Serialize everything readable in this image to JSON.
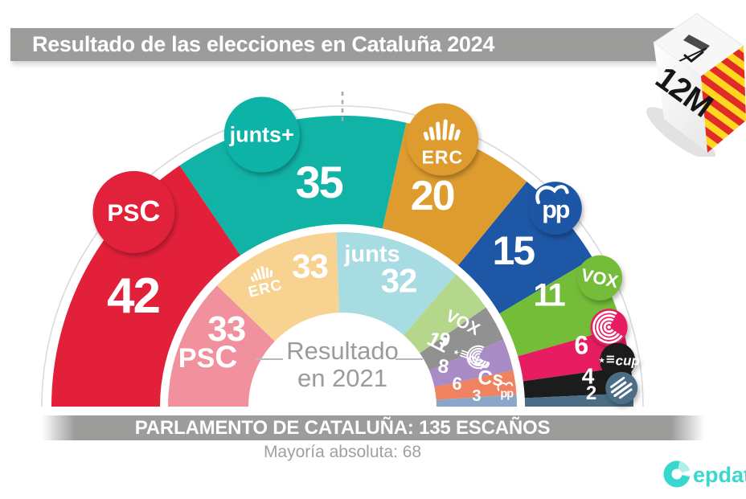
{
  "header": {
    "title": "Resultado de las elecciones en Cataluña 2024",
    "ballot_box": {
      "date_label": "12M",
      "flag_colors": [
        "#ffd71e",
        "#e02b28"
      ]
    }
  },
  "chart_data": {
    "type": "parliament-semicircle",
    "total_seats": 135,
    "center_label": {
      "line1": "Resultado",
      "line2": "en 2021"
    },
    "rings": [
      {
        "name": "2024",
        "position": "outer",
        "series": [
          {
            "party": "PSC",
            "seats": 42,
            "color": "#e2203a",
            "label": "PSC"
          },
          {
            "party": "Junts+",
            "seats": 35,
            "color": "#10b3a6",
            "label": "junts+"
          },
          {
            "party": "ERC",
            "seats": 20,
            "color": "#de9b2e",
            "label": "ERC",
            "icon": "erc-bars-icon"
          },
          {
            "party": "PP",
            "seats": 15,
            "color": "#1d57a5",
            "label": "pp",
            "icon": "pp-bird-icon"
          },
          {
            "party": "VOX",
            "seats": 11,
            "color": "#74bd39",
            "label": "VOX"
          },
          {
            "party": "Comuns Sumar",
            "seats": 6,
            "color": "#e71d62",
            "icon": "comuns-circles-icon"
          },
          {
            "party": "CUP",
            "seats": 4,
            "color": "#1c1c1c",
            "label": "cup",
            "icon": "cup-flag-icon"
          },
          {
            "party": "Aliança Catalana",
            "seats": 2,
            "color": "#4b6d86",
            "icon": "ac-globe-icon"
          }
        ]
      },
      {
        "name": "2021",
        "position": "inner",
        "series": [
          {
            "party": "PSC",
            "seats": 33,
            "color": "#f1919d",
            "label": "PSC"
          },
          {
            "party": "ERC",
            "seats": 33,
            "color": "#f7d291",
            "label": "ERC",
            "icon": "erc-bars-icon"
          },
          {
            "party": "Junts",
            "seats": 32,
            "color": "#a7dce3",
            "label": "junts"
          },
          {
            "party": "VOX",
            "seats": 11,
            "color": "#b5d78b",
            "label": "VOX"
          },
          {
            "party": "CUP",
            "seats": 9,
            "color": "#919191",
            "label": "cup",
            "icon": "cup-flag-icon"
          },
          {
            "party": "En Comú Podem",
            "seats": 8,
            "color": "#a98bc6",
            "icon": "comuns-circles-icon"
          },
          {
            "party": "Cs",
            "seats": 6,
            "color": "#f0825f",
            "label": "Cs"
          },
          {
            "party": "PP",
            "seats": 3,
            "color": "#8ba6c9",
            "label": "pp",
            "icon": "pp-bird-icon"
          }
        ]
      }
    ]
  },
  "footer": {
    "bar_text": "PARLAMENTO DE CATALUÑA: 135 ESCAÑOS",
    "majority_text": "Mayoría absoluta: 68",
    "brand": "epdata",
    "brand_color": "#38d8ce"
  }
}
